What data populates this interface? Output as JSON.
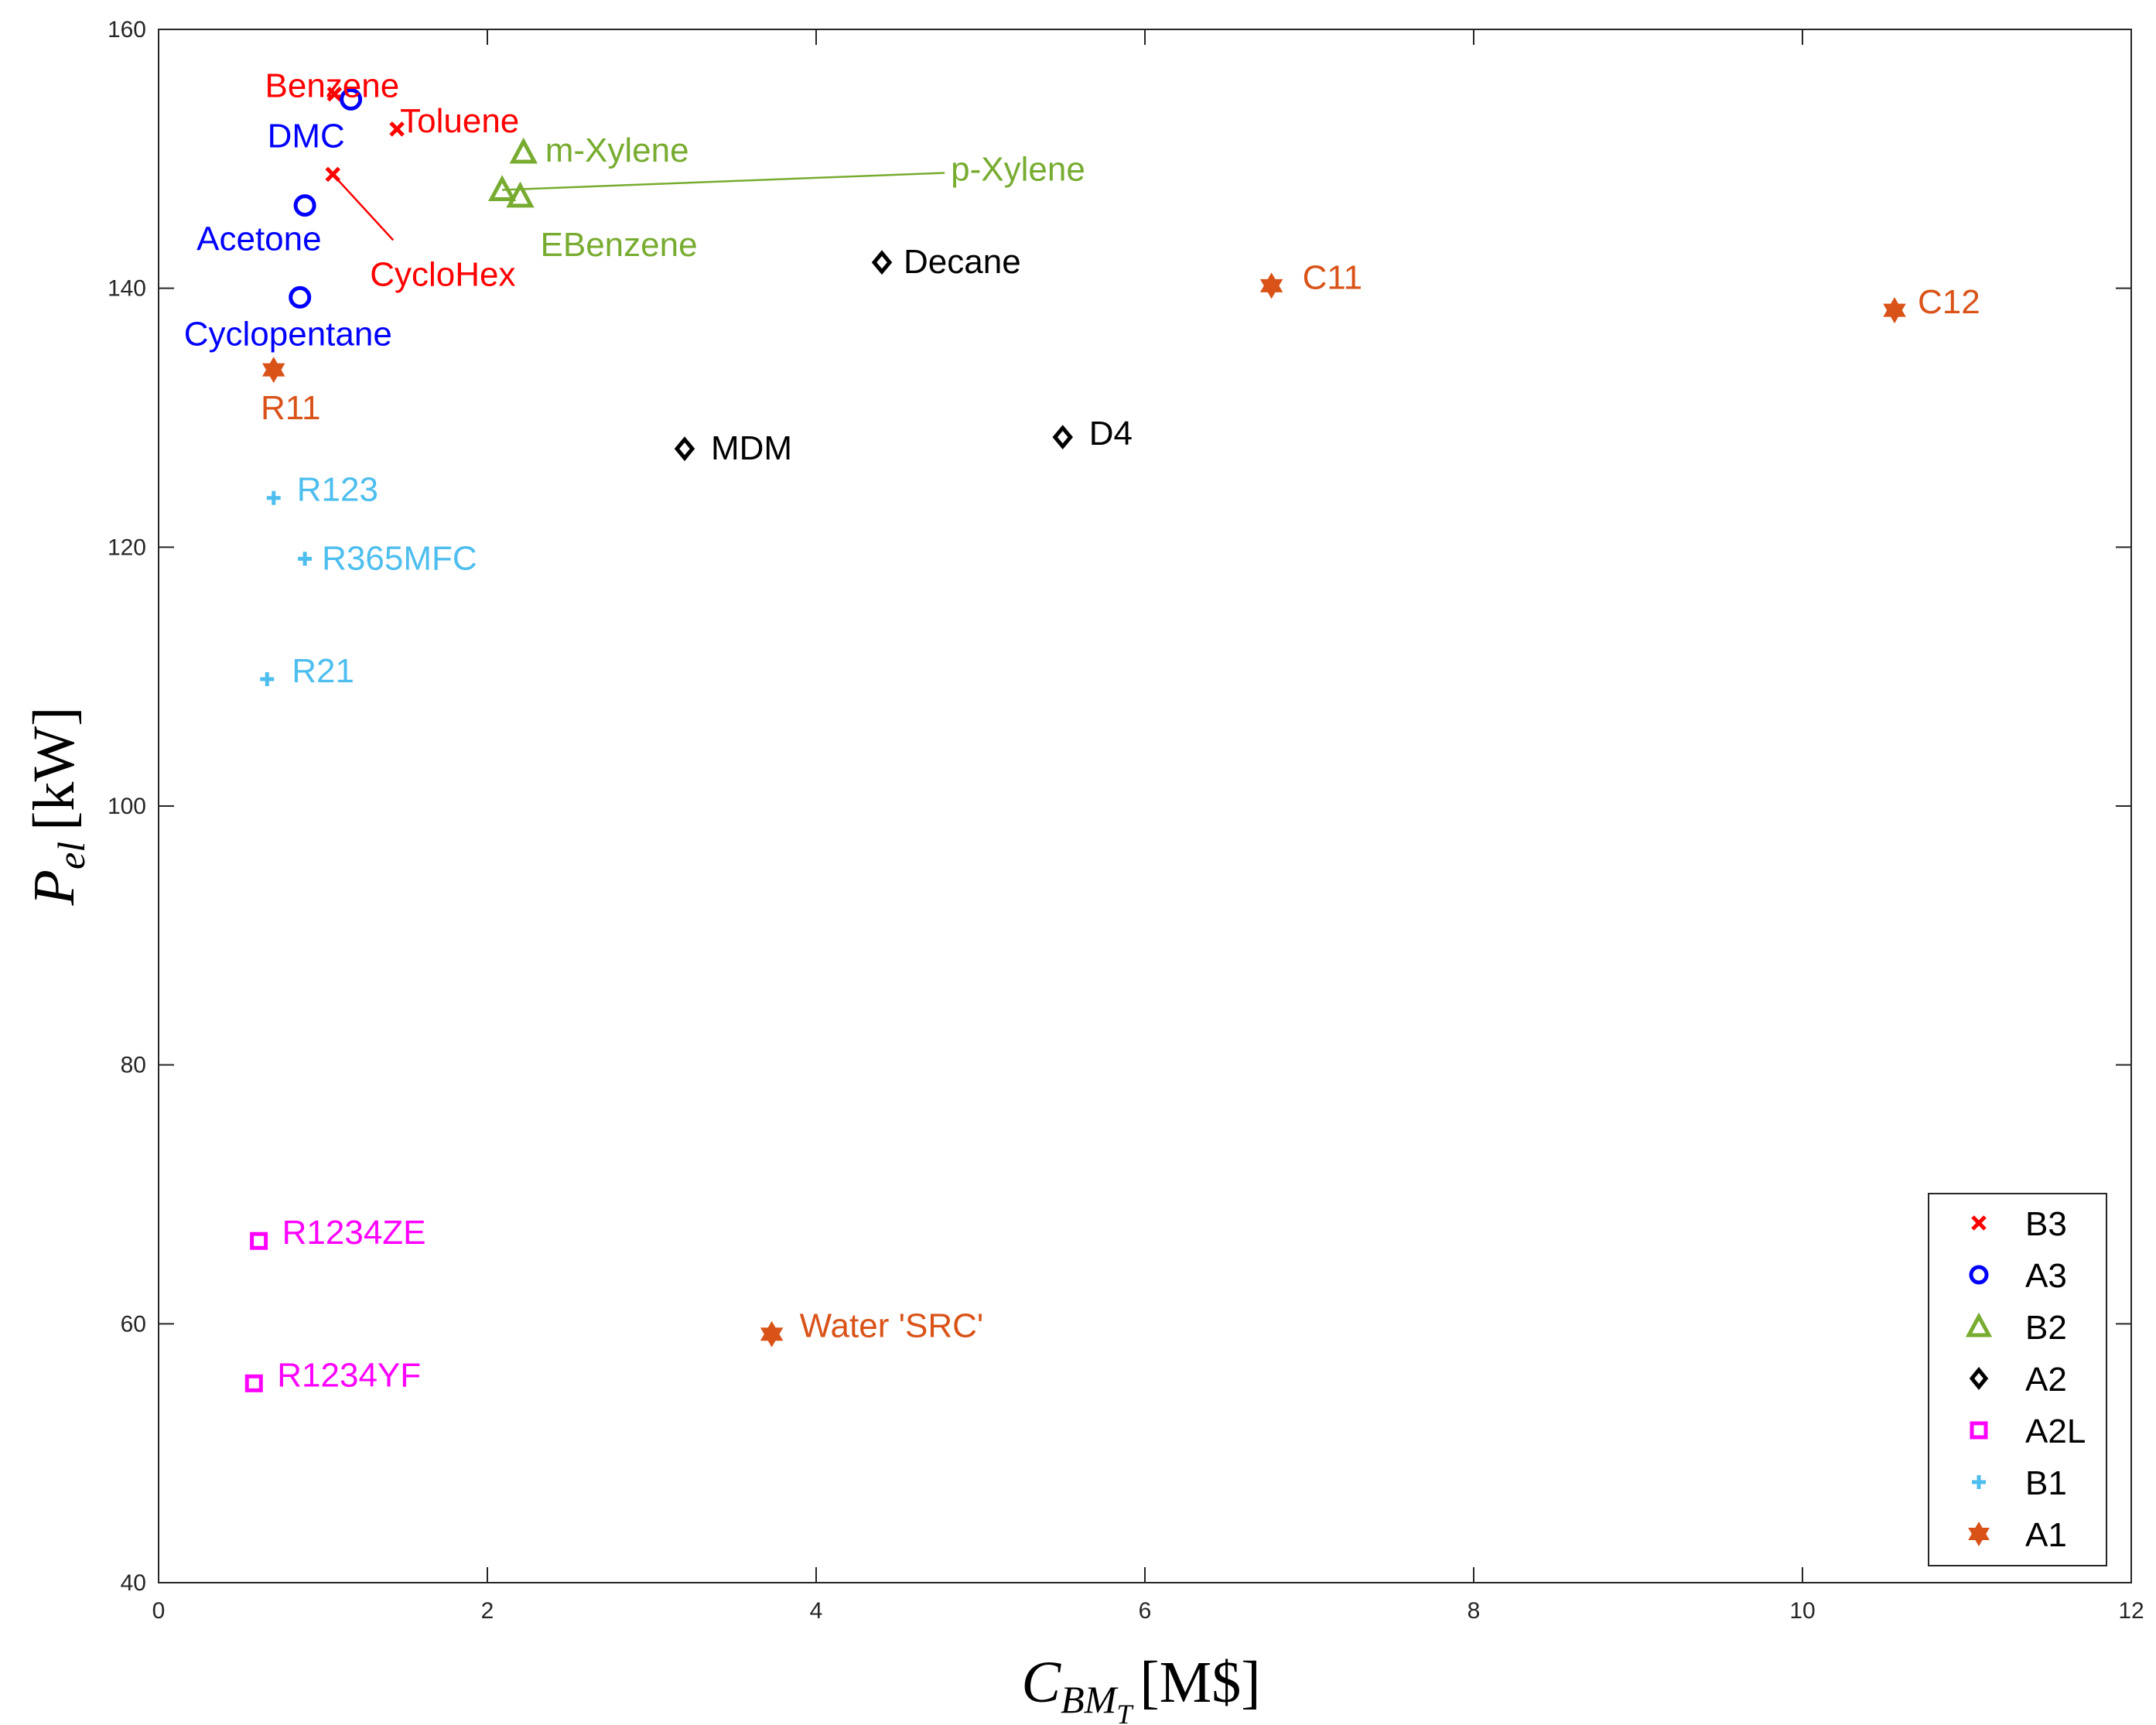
{
  "chart_data": {
    "type": "scatter",
    "title": "",
    "xlabel": {
      "main": "C",
      "sub": "BM",
      "subsub": "T",
      "unit": "[M$]"
    },
    "ylabel": {
      "main": "P",
      "sub": "el",
      "unit": "[kW]"
    },
    "xlim": [
      0,
      12
    ],
    "ylim": [
      40,
      160
    ],
    "xticks": [
      0,
      2,
      4,
      6,
      8,
      10,
      12
    ],
    "yticks": [
      40,
      60,
      80,
      100,
      120,
      140,
      160
    ],
    "grid": false,
    "legend_position": "bottom-right",
    "colors": {
      "B3": "#ff0000",
      "A3": "#0000ff",
      "B2": "#77ac30",
      "A2": "#000000",
      "A2L": "#ff00ff",
      "B1": "#4dbeee",
      "A1": "#d95319"
    },
    "series": [
      {
        "name": "B3",
        "marker": "x",
        "points": [
          {
            "label": "Benzene",
            "x": 1.07,
            "y": 155.0
          },
          {
            "label": "Toluene",
            "x": 1.45,
            "y": 152.3
          },
          {
            "label": "CycloHex",
            "x": 1.06,
            "y": 148.8
          }
        ]
      },
      {
        "name": "A3",
        "marker": "circle",
        "points": [
          {
            "label": "DMC",
            "x": 1.17,
            "y": 154.6
          },
          {
            "label": "Acetone",
            "x": 0.89,
            "y": 146.4
          },
          {
            "label": "Cyclopentane",
            "x": 0.86,
            "y": 139.3
          }
        ]
      },
      {
        "name": "B2",
        "marker": "triangle",
        "points": [
          {
            "label": "m-Xylene",
            "x": 2.22,
            "y": 150.5
          },
          {
            "label": "p-Xylene",
            "x": 2.09,
            "y": 147.6
          },
          {
            "label": "EBenzene",
            "x": 2.2,
            "y": 147.1
          }
        ]
      },
      {
        "name": "A2",
        "marker": "diamond",
        "points": [
          {
            "label": "Decane",
            "x": 4.4,
            "y": 142.0
          },
          {
            "label": "MDM",
            "x": 3.2,
            "y": 127.6
          },
          {
            "label": "D4",
            "x": 5.5,
            "y": 128.5
          }
        ]
      },
      {
        "name": "A2L",
        "marker": "square",
        "points": [
          {
            "label": "R1234ZE",
            "x": 0.61,
            "y": 66.4
          },
          {
            "label": "R1234YF",
            "x": 0.58,
            "y": 55.4
          }
        ]
      },
      {
        "name": "B1",
        "marker": "plus",
        "points": [
          {
            "label": "R123",
            "x": 0.7,
            "y": 123.8
          },
          {
            "label": "R365MFC",
            "x": 0.89,
            "y": 119.1
          },
          {
            "label": "R21",
            "x": 0.66,
            "y": 109.8
          }
        ]
      },
      {
        "name": "A1",
        "marker": "star",
        "points": [
          {
            "label": "R11",
            "x": 0.7,
            "y": 133.7
          },
          {
            "label": "C11",
            "x": 6.77,
            "y": 140.2
          },
          {
            "label": "C12",
            "x": 10.56,
            "y": 138.3
          },
          {
            "label": "Water 'SRC'",
            "x": 3.73,
            "y": 59.2
          }
        ]
      }
    ]
  }
}
